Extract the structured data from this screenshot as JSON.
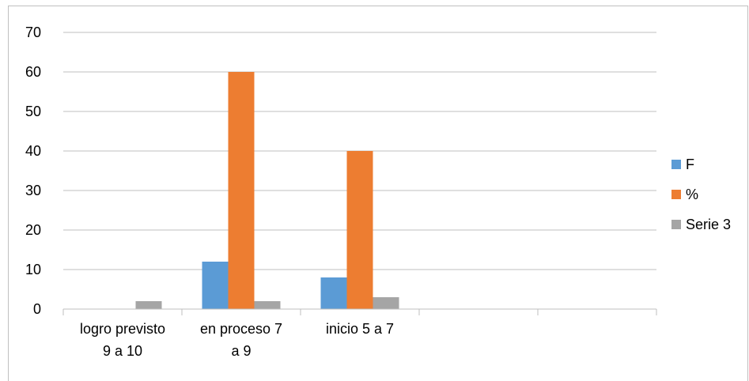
{
  "chart_data": {
    "type": "bar",
    "categories": [
      [
        "logro previsto",
        "9 a 10"
      ],
      [
        "en proceso 7",
        "a 9"
      ],
      [
        "inicio 5 a 7"
      ],
      [],
      []
    ],
    "series": [
      {
        "name": "F",
        "color": "#5b9bd5",
        "values": [
          0,
          12,
          8,
          null,
          null
        ]
      },
      {
        "name": "%",
        "color": "#ed7d31",
        "values": [
          0,
          60,
          40,
          null,
          null
        ]
      },
      {
        "name": "Serie 3",
        "color": "#a5a5a5",
        "values": [
          2,
          2,
          3,
          null,
          null
        ]
      }
    ],
    "ylim": [
      0,
      70
    ],
    "yticks": [
      "0",
      "10",
      "20",
      "30",
      "40",
      "50",
      "60",
      "70"
    ],
    "grid": true,
    "legend_position": "right"
  }
}
